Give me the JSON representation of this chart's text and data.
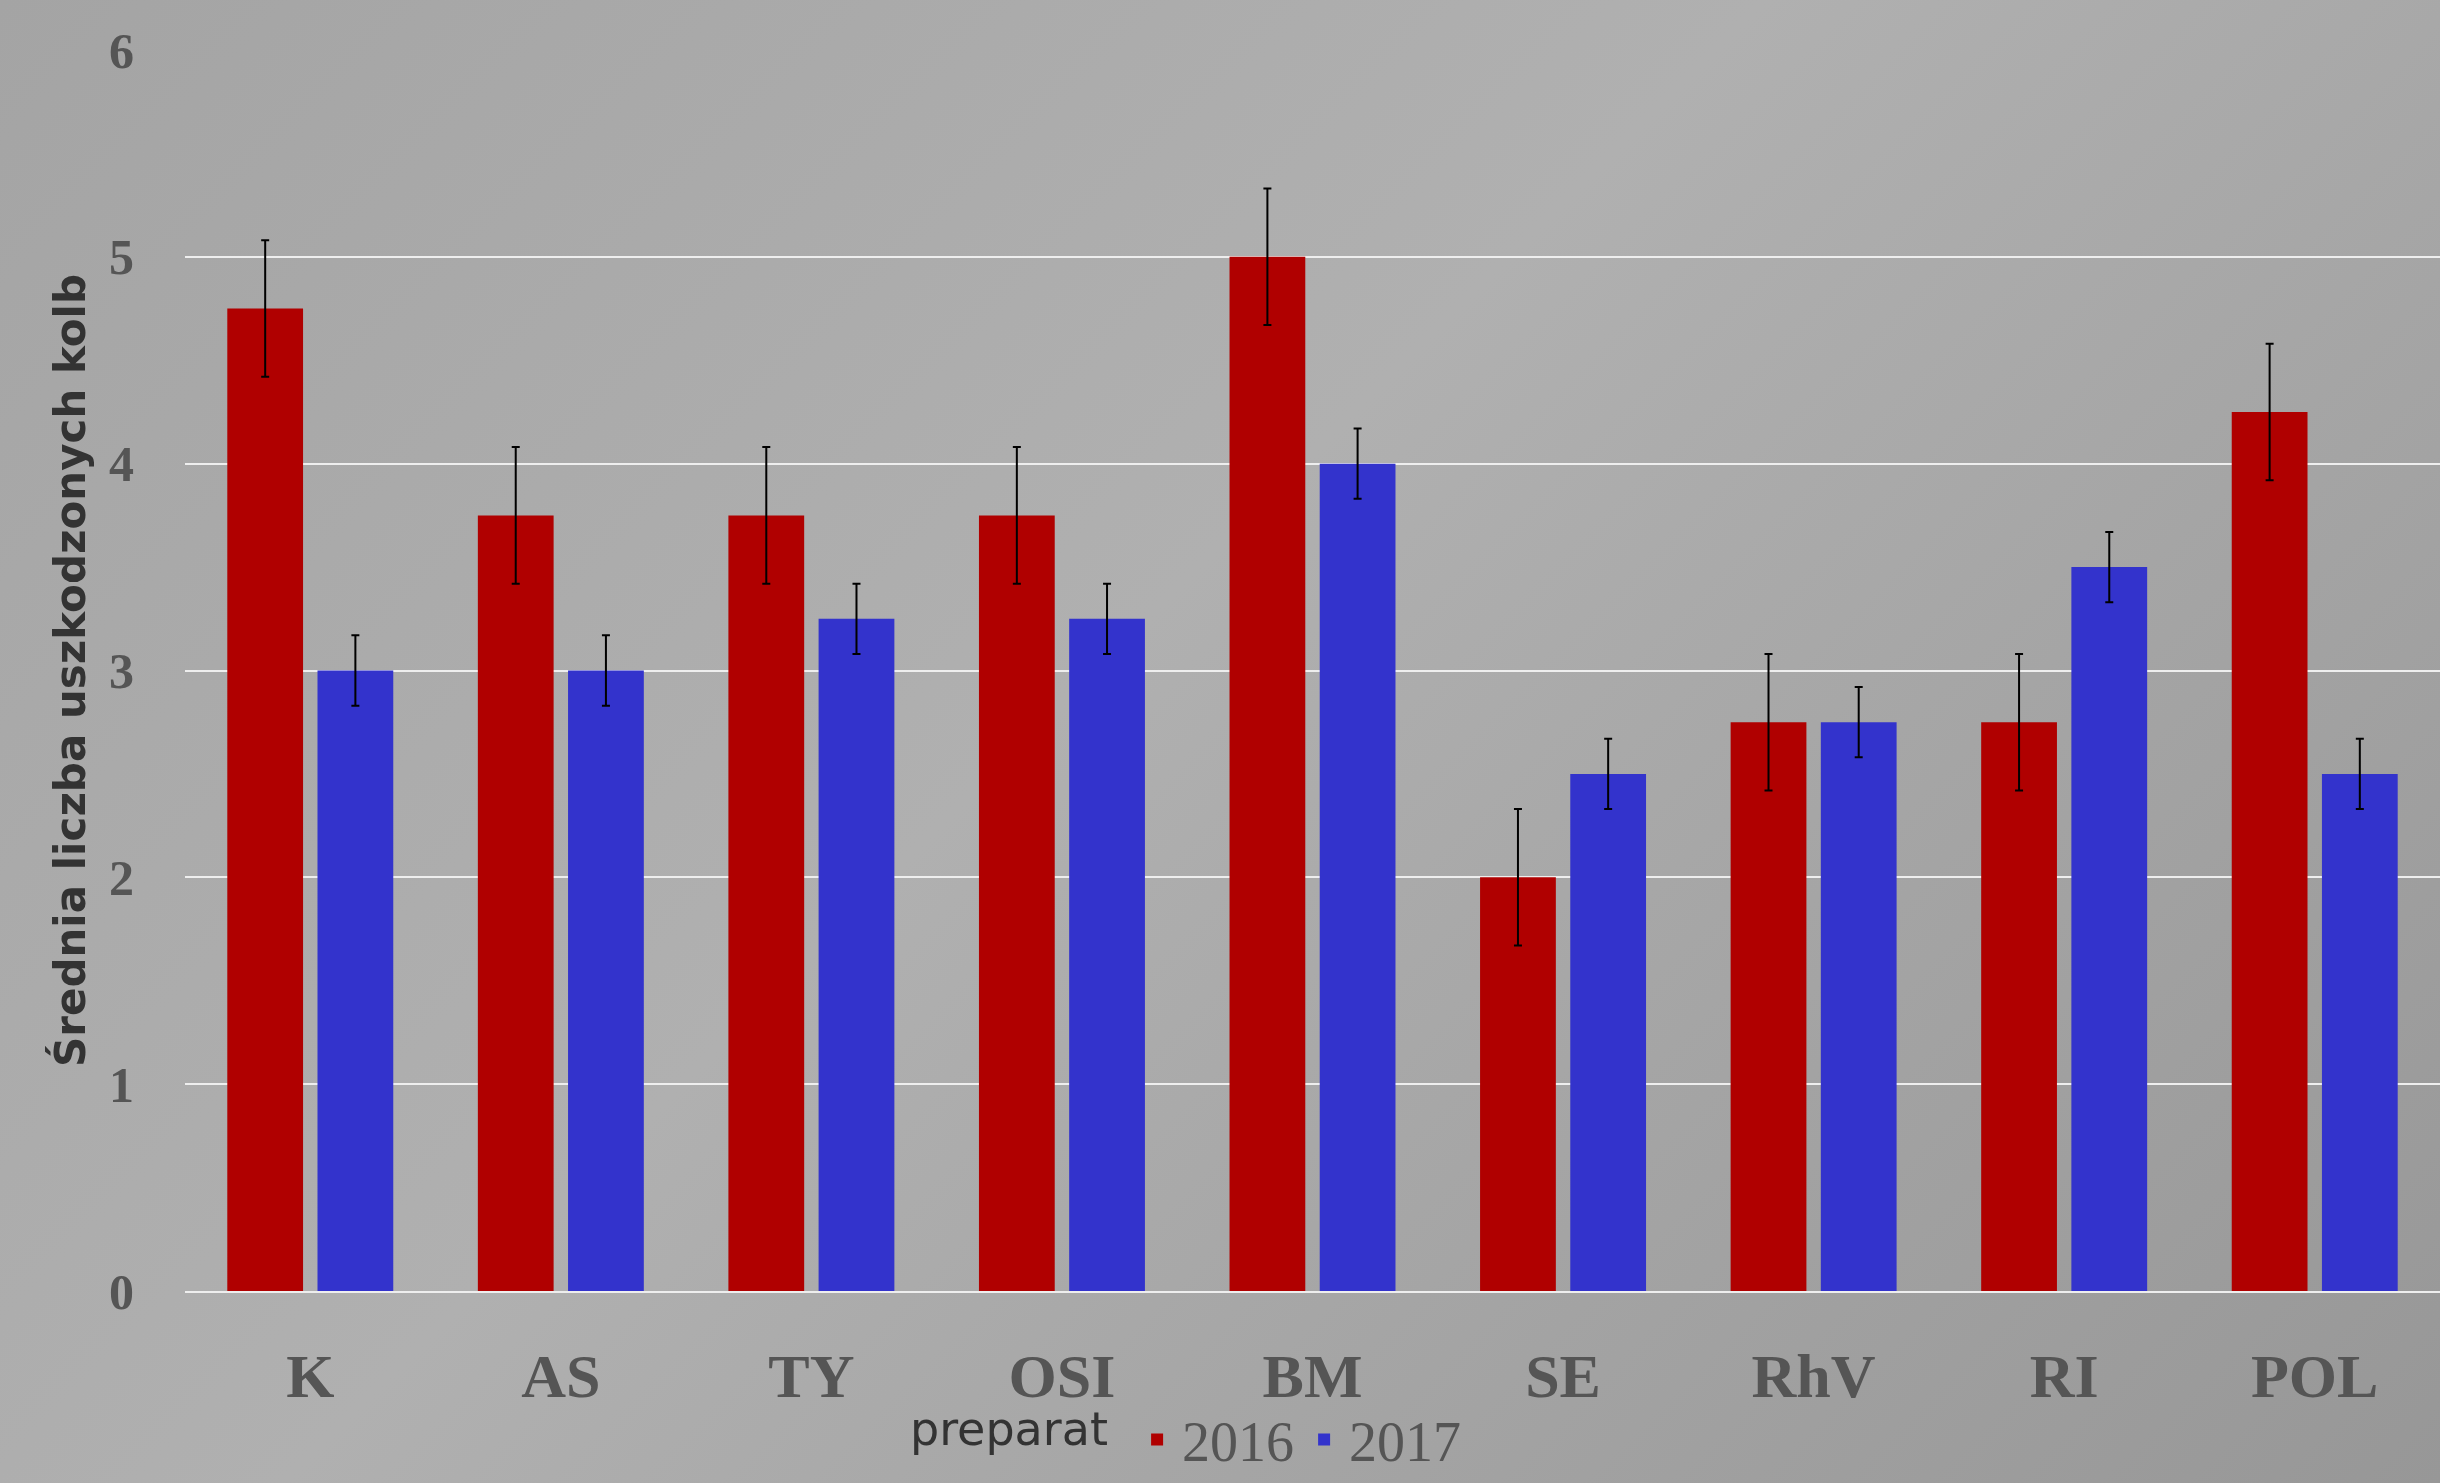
{
  "chart_data": {
    "type": "bar",
    "xlabel": "preparat",
    "ylabel": "Średnia liczba uszkodzonych kolb",
    "categories": [
      "K",
      "AS",
      "TY",
      "OSI",
      "BM",
      "SE",
      "RhV",
      "RI",
      "POL"
    ],
    "series": [
      {
        "name": "2016",
        "color": "#b00000",
        "values": [
          4.75,
          3.75,
          3.75,
          3.75,
          5,
          2,
          2.75,
          2.75,
          4.25
        ],
        "errors": [
          0.33,
          0.33,
          0.33,
          0.33,
          0.33,
          0.33,
          0.33,
          0.33,
          0.33
        ]
      },
      {
        "name": "2017",
        "color": "#3333cc",
        "values": [
          3,
          3,
          3.25,
          3.25,
          4,
          2.5,
          2.75,
          3.5,
          2.5
        ],
        "errors": [
          0.17,
          0.17,
          0.17,
          0.17,
          0.17,
          0.17,
          0.17,
          0.17,
          0.17
        ]
      }
    ],
    "ylim": [
      0,
      6
    ],
    "yticks": [
      0,
      1,
      2,
      3,
      4,
      5,
      6
    ],
    "grid": "y",
    "legend": "bottom"
  }
}
